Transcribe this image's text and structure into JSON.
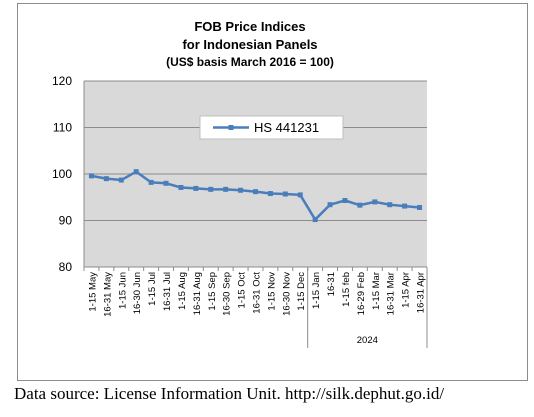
{
  "chart_data": {
    "type": "line",
    "title": [
      "FOB Price Indices",
      "for Indonesian Panels",
      "(US$ basis March 2016 = 100)"
    ],
    "xlabel": "",
    "ylabel": "",
    "ylim": [
      80,
      120
    ],
    "yticks": [
      80,
      90,
      100,
      110,
      120
    ],
    "grid": true,
    "legend_position": "top-center",
    "categories": [
      "1-15 May",
      "16-31 May",
      "1-15 Jun",
      "16-30 Jun",
      "1-15 Jul",
      "16-31 Jul",
      "1-15 Aug",
      "16-31 Aug",
      "1-15 Sep",
      "16-30 Sep",
      "1-15 Oct",
      "16-31 Oct",
      "1-15 Nov",
      "16-30 Nov",
      "1-15 Dec",
      "1-15 Jan",
      "16-31",
      "1-15 feb",
      "16-29 Feb",
      "1-15 Mar",
      "16-31 Mar",
      "1-15 Apr",
      "16-31 Apr"
    ],
    "group_labels": [
      {
        "label": "2024",
        "start": 15,
        "end": 22
      }
    ],
    "series": [
      {
        "name": "HS 441231",
        "color": "#4a7ebb",
        "values": [
          99.6,
          99.0,
          98.7,
          100.5,
          98.2,
          98.0,
          97.1,
          96.9,
          96.7,
          96.7,
          96.5,
          96.2,
          95.8,
          95.7,
          95.5,
          90.2,
          93.4,
          94.3,
          93.3,
          94.0,
          93.4,
          93.1,
          92.8
        ]
      }
    ]
  },
  "source_note": "Data source: License Information Unit. http://silk.dephut.go.id/"
}
